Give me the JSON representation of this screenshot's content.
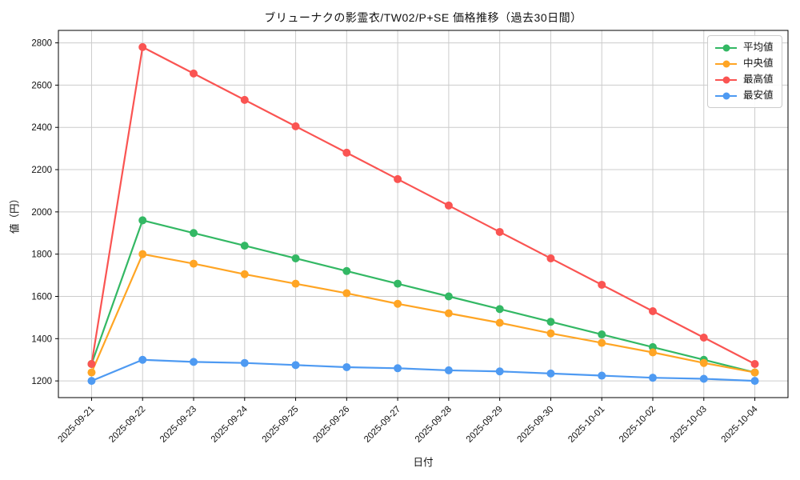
{
  "figure": {
    "title": "ブリューナクの影霊衣/TW02/P+SE 価格推移（過去30日間）",
    "xlabel": "日付",
    "ylabel": "値（円）"
  },
  "chart_data": {
    "type": "line",
    "title": "ブリューナクの影霊衣/TW02/P+SE 価格推移（過去30日間）",
    "xlabel": "日付",
    "ylabel": "値（円）",
    "categories": [
      "2025-09-21",
      "2025-09-22",
      "2025-09-23",
      "2025-09-24",
      "2025-09-25",
      "2025-09-26",
      "2025-09-27",
      "2025-09-28",
      "2025-09-29",
      "2025-09-30",
      "2025-10-01",
      "2025-10-02",
      "2025-10-03",
      "2025-10-04"
    ],
    "series": [
      {
        "name": "平均値",
        "key": "average",
        "color": "#33b864",
        "marker": "circle",
        "values": [
          1280,
          1960,
          1900,
          1840,
          1780,
          1720,
          1660,
          1600,
          1540,
          1480,
          1420,
          1360,
          1300,
          1240
        ]
      },
      {
        "name": "中央値",
        "key": "median",
        "color": "#ffa524",
        "marker": "circle",
        "values": [
          1240,
          1800,
          1755,
          1705,
          1660,
          1615,
          1565,
          1520,
          1475,
          1425,
          1380,
          1335,
          1285,
          1240
        ]
      },
      {
        "name": "最高値",
        "key": "max",
        "color": "#fa5452",
        "marker": "circle",
        "values": [
          1280,
          2780,
          2655,
          2530,
          2405,
          2280,
          2155,
          2030,
          1905,
          1780,
          1655,
          1530,
          1405,
          1280
        ]
      },
      {
        "name": "最安値",
        "key": "min",
        "color": "#4e9af2",
        "marker": "circle",
        "values": [
          1200,
          1300,
          1290,
          1285,
          1275,
          1265,
          1260,
          1250,
          1245,
          1235,
          1225,
          1215,
          1210,
          1200
        ]
      }
    ],
    "yticks": [
      1200,
      1400,
      1600,
      1800,
      2000,
      2200,
      2400,
      2600,
      2800
    ],
    "ylim": [
      1121,
      2859
    ],
    "grid": true,
    "grid_color": "#cccccc",
    "spine_color": "#000000",
    "legend_position": "upper right"
  }
}
